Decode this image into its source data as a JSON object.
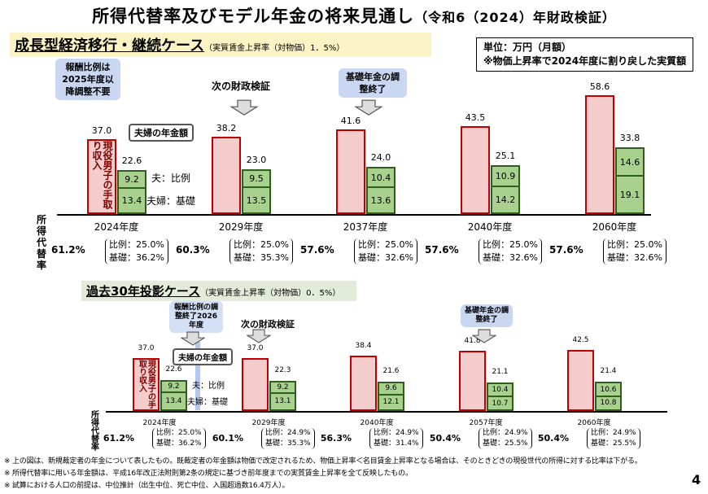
{
  "title": "所得代替率及びモデル年金の将来見通し",
  "title_sub": "（令和6（2024）年財政検証）",
  "unit_note": {
    "line1": "単位：万円（月額）",
    "line2": "※物価上昇率で2024年度に割り戻した実質額"
  },
  "side_label": "所得代替率",
  "legend": {
    "red": "現役男子の手取り収入",
    "couple": "夫婦の年金額",
    "hirei": "夫：比例",
    "kiso": "夫婦：基礎"
  },
  "page_number": "4",
  "footnotes": [
    "※ 上の図は、新規裁定者の年金について表したもの。既裁定者の年金額は物価で改定されるため、物価上昇率＜名目賃金上昇率となる場合は、そのときどきの現役世代の所得に対する比率は下がる。",
    "※ 所得代替率に用いる年金額は、平成16年改正法附則第2条の規定に基づき前年度までの実質賃金上昇率を全て反映したもの。",
    "※ 試算における人口の前提は、中位推計（出生中位、死亡中位、入国超過数16.4万人）。"
  ],
  "colors": {
    "red_fill": "#f4cccc",
    "red_border": "#c00000",
    "green_fill": "#a9d18e",
    "note_bg": "#c9d7f3"
  },
  "chart_data": [
    {
      "type": "bar",
      "title": "成長型経済移行・継続ケース",
      "subtitle": "（実質賃金上昇率（対物価）1．5%）",
      "notes": {
        "n1": "報酬比例は2025年度以降調整不要",
        "n2": "次の財政検証",
        "n3": "基礎年金の調整終了"
      },
      "categories": [
        "2024年度",
        "2029年度",
        "2037年度",
        "2040年度",
        "2060年度"
      ],
      "income": [
        37.0,
        38.2,
        41.6,
        43.5,
        58.6
      ],
      "pension_total": [
        22.6,
        23.0,
        24.0,
        25.1,
        33.8
      ],
      "hirei": [
        9.2,
        9.5,
        10.4,
        10.9,
        14.6
      ],
      "kiso": [
        13.4,
        13.5,
        13.6,
        14.2,
        19.1
      ],
      "replacement_rate": [
        "61.2%",
        "60.3%",
        "57.6%",
        "57.6%",
        "57.6%"
      ],
      "hirei_rate": [
        "比例：25.0%",
        "比例：25.0%",
        "比例：25.0%",
        "比例：25.0%",
        "比例：25.0%"
      ],
      "kiso_rate": [
        "基礎：36.2%",
        "基礎：35.3%",
        "基礎：32.6%",
        "基礎：32.6%",
        "基礎：32.6%"
      ]
    },
    {
      "type": "bar",
      "title": "過去30年投影ケース",
      "subtitle": "（実質賃金上昇率（対物価）0．5%）",
      "notes": {
        "n1": "報酬比例の調整終了2026年度",
        "n2": "次の財政検証",
        "n3": "基礎年金の調整終了"
      },
      "categories": [
        "2024年度",
        "2029年度",
        "2040年度",
        "2057年度",
        "2060年度"
      ],
      "income": [
        37.0,
        37.0,
        38.4,
        41.8,
        42.5
      ],
      "pension_total": [
        22.6,
        22.3,
        21.6,
        21.1,
        21.4
      ],
      "hirei": [
        9.2,
        9.2,
        9.6,
        10.4,
        10.6
      ],
      "kiso": [
        13.4,
        13.1,
        12.1,
        10.7,
        10.8
      ],
      "replacement_rate": [
        "61.2%",
        "60.1%",
        "56.3%",
        "50.4%",
        "50.4%"
      ],
      "hirei_rate": [
        "比例：25.0%",
        "比例：24.9%",
        "比例：24.9%",
        "比例：24.9%",
        "比例：24.9%"
      ],
      "kiso_rate": [
        "基礎：36.2%",
        "基礎：35.3%",
        "基礎：31.4%",
        "基礎：25.5%",
        "基礎：25.5%"
      ]
    }
  ]
}
